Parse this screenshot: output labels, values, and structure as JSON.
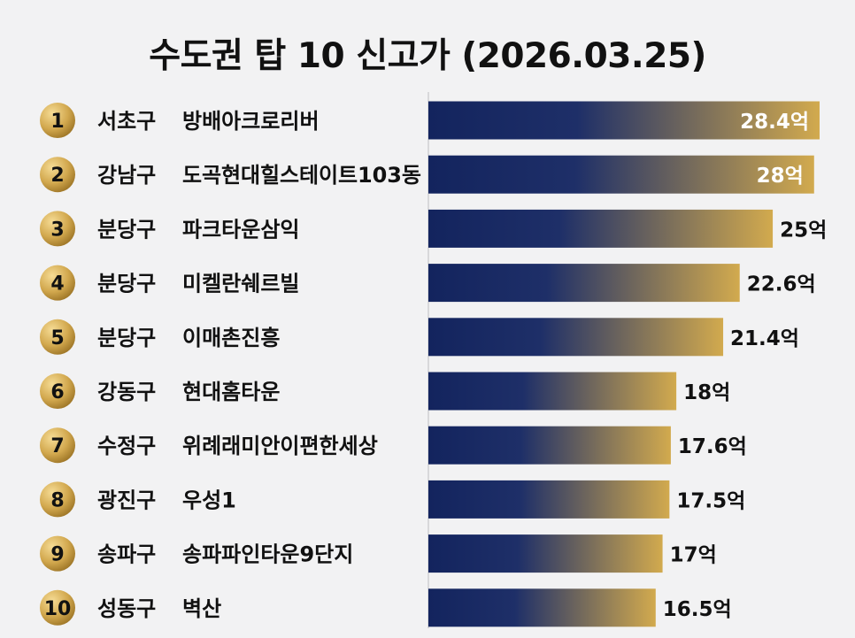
{
  "chart_data": {
    "type": "bar",
    "orientation": "horizontal",
    "title": "수도권 탑 10 신고가 (2026.03.25)",
    "unit": "억",
    "xlim": [
      0,
      28.4
    ],
    "grid": false,
    "legend": "none",
    "rows": [
      {
        "rank": "1",
        "district": "서초구",
        "name": "방배아크로리버",
        "value": 28.4,
        "label": "28.4억"
      },
      {
        "rank": "2",
        "district": "강남구",
        "name": "도곡현대힐스테이트103동",
        "value": 28,
        "label": "28억"
      },
      {
        "rank": "3",
        "district": "분당구",
        "name": "파크타운삼익",
        "value": 25,
        "label": "25억"
      },
      {
        "rank": "4",
        "district": "분당구",
        "name": "미켈란쉐르빌",
        "value": 22.6,
        "label": "22.6억"
      },
      {
        "rank": "5",
        "district": "분당구",
        "name": "이매촌진흥",
        "value": 21.4,
        "label": "21.4억"
      },
      {
        "rank": "6",
        "district": "강동구",
        "name": "현대홈타운",
        "value": 18,
        "label": "18억"
      },
      {
        "rank": "7",
        "district": "수정구",
        "name": "위례래미안이편한세상",
        "value": 17.6,
        "label": "17.6억"
      },
      {
        "rank": "8",
        "district": "광진구",
        "name": "우성1",
        "value": 17.5,
        "label": "17.5억"
      },
      {
        "rank": "9",
        "district": "송파구",
        "name": "송파파인타운9단지",
        "value": 17,
        "label": "17억"
      },
      {
        "rank": "10",
        "district": "성동구",
        "name": "벽산",
        "value": 16.5,
        "label": "16.5억"
      }
    ]
  },
  "colors": {
    "bar_start": "#13245e",
    "bar_end": "#d2aa4e",
    "badge": "#c9a04a",
    "text": "#111111",
    "background": "#f2f2f3"
  }
}
